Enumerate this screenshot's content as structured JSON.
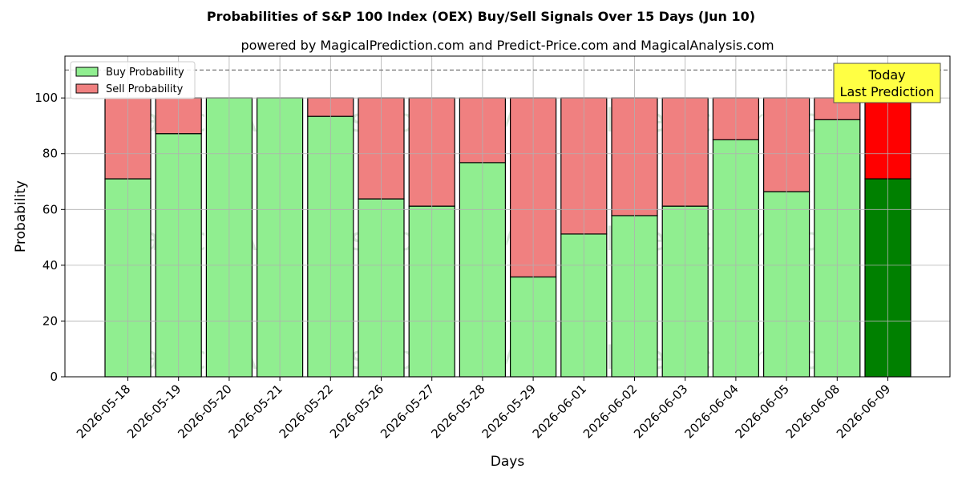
{
  "chart_data": {
    "type": "bar",
    "stacked": true,
    "title": "Probabilities of S&P 100 Index (OEX) Buy/Sell Signals Over 15 Days (Jun 10)",
    "subtitle": "powered by MagicalPrediction.com and Predict-Price.com and MagicalAnalysis.com",
    "xlabel": "Days",
    "ylabel": "Probability",
    "ylim": [
      0,
      115
    ],
    "yticks": [
      0,
      20,
      40,
      60,
      80,
      100
    ],
    "reference_line": 110,
    "grid": true,
    "legend_placement": "top-left",
    "categories": [
      "2026-05-18",
      "2026-05-19",
      "2026-05-20",
      "2026-05-21",
      "2026-05-22",
      "2026-05-26",
      "2026-05-27",
      "2026-05-28",
      "2026-05-29",
      "2026-06-01",
      "2026-06-02",
      "2026-06-03",
      "2026-06-04",
      "2026-06-05",
      "2026-06-08",
      "2026-06-09"
    ],
    "series": [
      {
        "name": "Buy Probability",
        "color": "#90ee90",
        "values": [
          71,
          87.2,
          100,
          100,
          93.4,
          63.8,
          61.2,
          76.8,
          35.8,
          51.2,
          57.8,
          61.2,
          85,
          66.4,
          92.2,
          71
        ]
      },
      {
        "name": "Sell Probability",
        "color": "#f08080",
        "values": [
          29,
          12.8,
          0,
          0,
          6.6,
          36.2,
          38.8,
          23.2,
          64.2,
          48.8,
          42.2,
          38.8,
          15,
          33.6,
          7.8,
          29
        ]
      }
    ],
    "highlight": {
      "category": "2026-06-09",
      "buy_color": "#008000",
      "sell_color": "#ff0000"
    },
    "annotation": {
      "lines": [
        "Today",
        "Last Prediction"
      ],
      "background": "#ffff44"
    },
    "watermarks": [
      "MagicalAnalysis.com",
      "MagicalPrediction.com"
    ]
  }
}
